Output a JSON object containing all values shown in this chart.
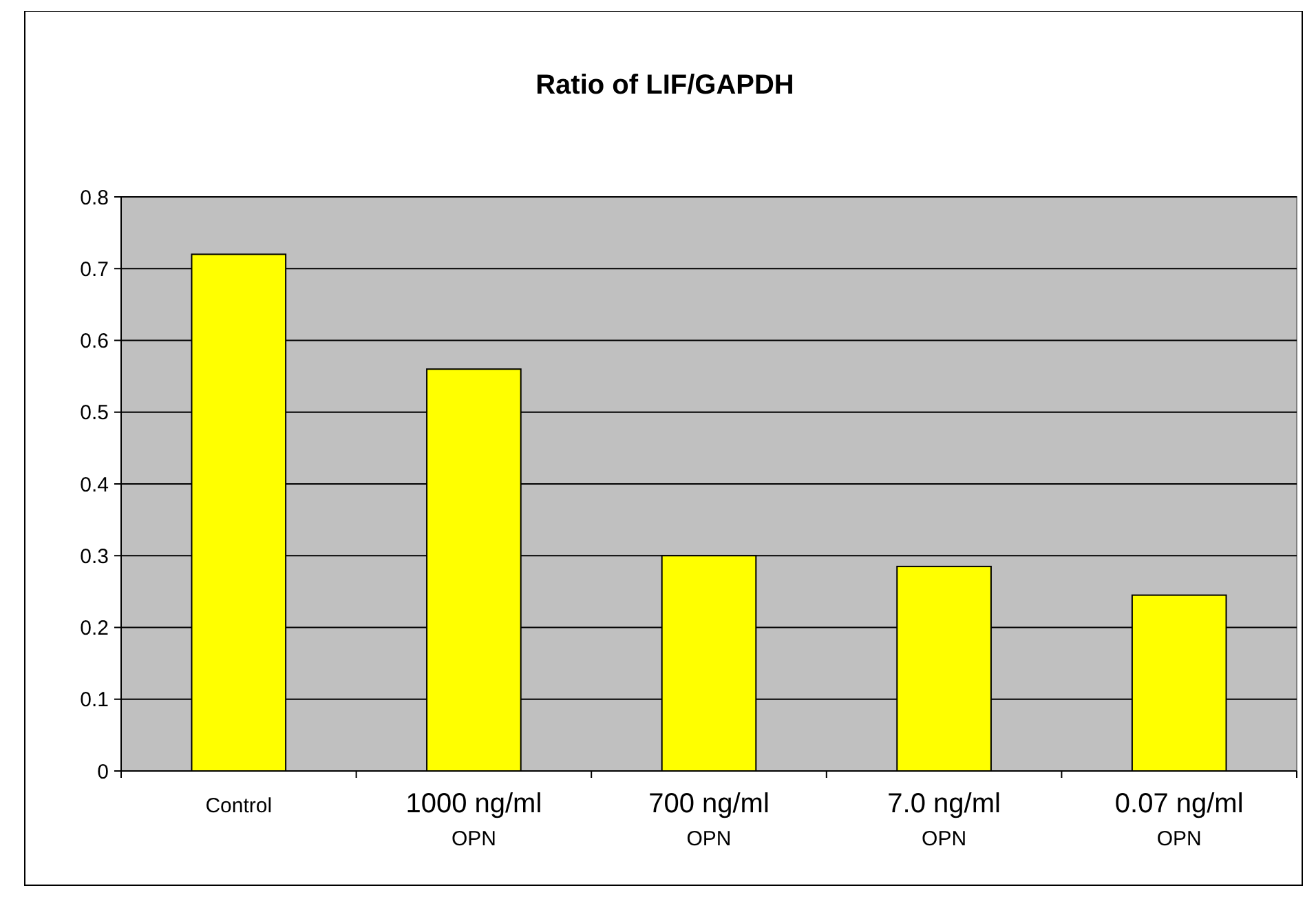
{
  "chart_data": {
    "type": "bar",
    "title": "Ratio of LIF/GAPDH",
    "categories": [
      "Control",
      "1000 ng/ml\nOPN",
      "700 ng/ml\nOPN",
      "7.0 ng/ml\nOPN",
      "0.07 ng/ml\nOPN"
    ],
    "values": [
      0.72,
      0.56,
      0.3,
      0.285,
      0.245
    ],
    "color": "#ffff00",
    "ylim": [
      0,
      0.8
    ],
    "yticks": [
      0,
      0.1,
      0.2,
      0.3,
      0.4,
      0.5,
      0.6,
      0.7,
      0.8
    ],
    "grid": "y"
  }
}
